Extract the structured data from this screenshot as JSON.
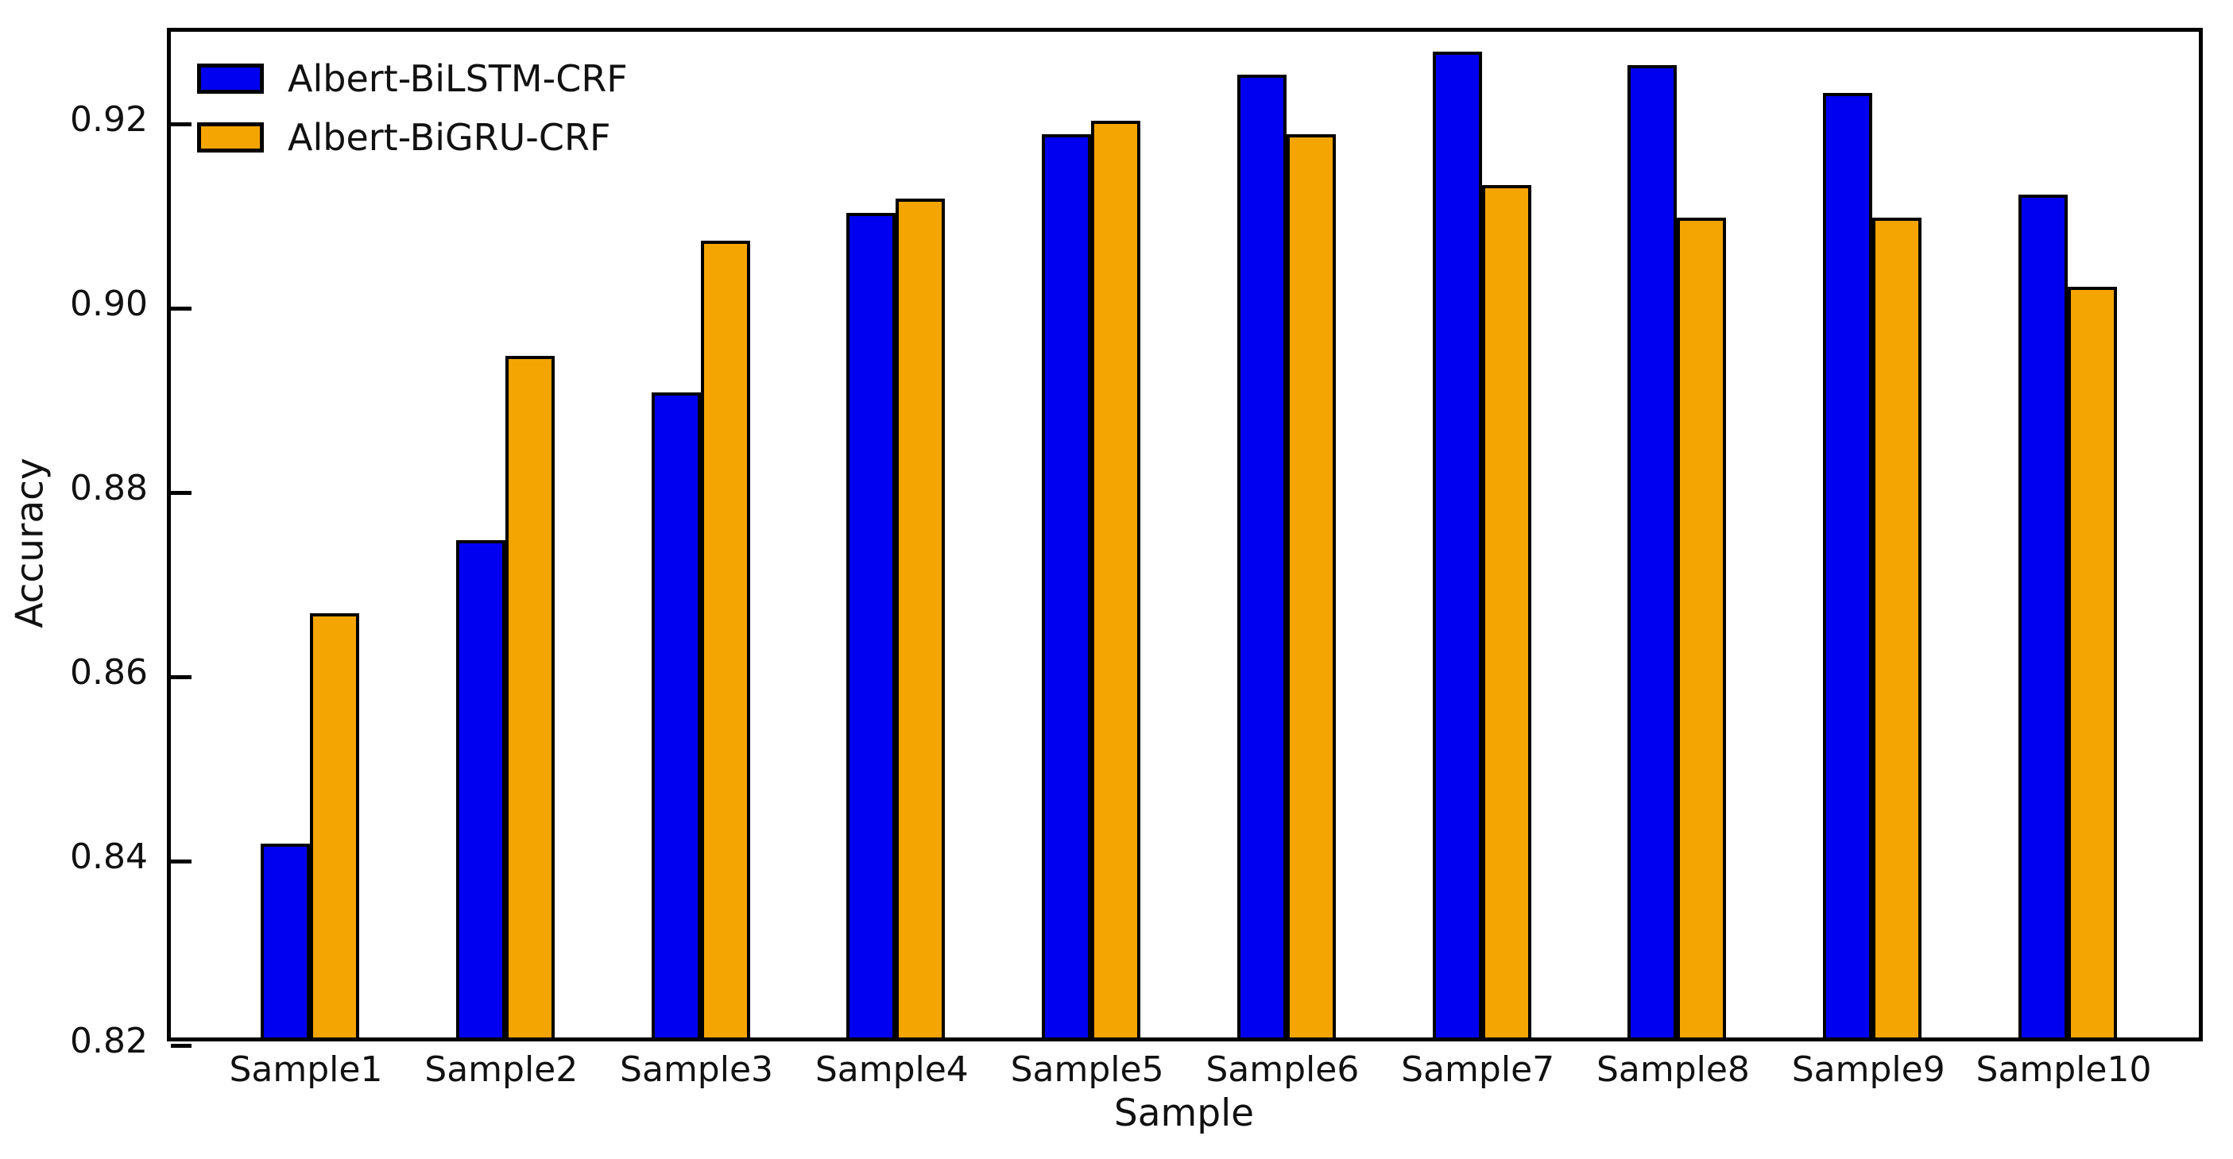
{
  "chart_data": {
    "type": "bar",
    "title": "",
    "xlabel": "Sample",
    "ylabel": "Accuracy",
    "categories": [
      "Sample1",
      "Sample2",
      "Sample3",
      "Sample4",
      "Sample5",
      "Sample6",
      "Sample7",
      "Sample8",
      "Sample9",
      "Sample10"
    ],
    "series": [
      {
        "name": "Albert-BiLSTM-CRF",
        "color": "#0000f0",
        "values": [
          0.841,
          0.874,
          0.89,
          0.9095,
          0.918,
          0.9245,
          0.927,
          0.9255,
          0.9225,
          0.9115
        ]
      },
      {
        "name": "Albert-BiGRU-CRF",
        "color": "#f5a502",
        "values": [
          0.866,
          0.894,
          0.9065,
          0.911,
          0.9195,
          0.918,
          0.9125,
          0.909,
          0.909,
          0.9015
        ]
      }
    ],
    "ylim": [
      0.82,
      0.93
    ],
    "yticks": [
      0.82,
      0.84,
      0.86,
      0.88,
      0.9,
      0.92
    ],
    "ytick_decimals": 2,
    "grid": false,
    "legend_position": "top-left",
    "bar_edge_color": "#000000",
    "axis_color": "#000000",
    "background_color": "#ffffff"
  }
}
